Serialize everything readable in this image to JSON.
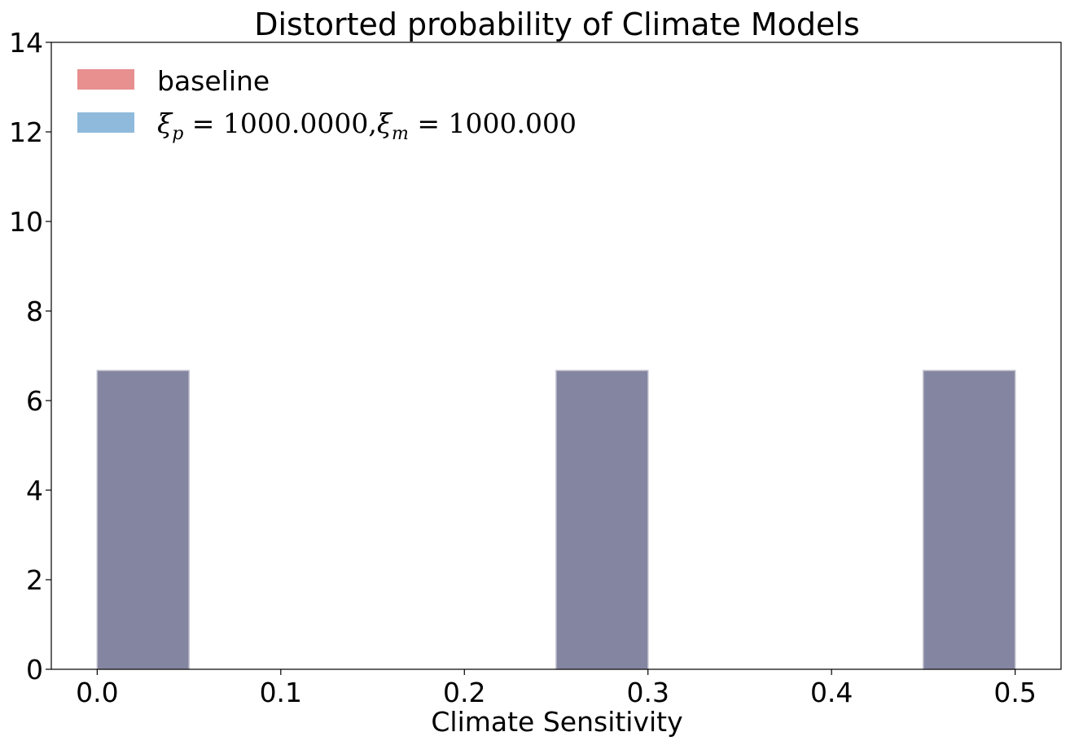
{
  "chart_data": {
    "type": "bar",
    "title": "Distorted probability of Climate Models",
    "xlabel": "Climate Sensitivity",
    "ylabel": "",
    "xlim": [
      -0.025,
      0.525
    ],
    "ylim": [
      0,
      14
    ],
    "x_ticks": [
      0.0,
      0.1,
      0.2,
      0.3,
      0.4,
      0.5
    ],
    "x_tick_labels": [
      "0.0",
      "0.1",
      "0.2",
      "0.3",
      "0.4",
      "0.5"
    ],
    "y_ticks": [
      0,
      2,
      4,
      6,
      8,
      10,
      12,
      14
    ],
    "y_tick_labels": [
      "0",
      "2",
      "4",
      "6",
      "8",
      "10",
      "12",
      "14"
    ],
    "bin_width": 0.05,
    "grid": false,
    "legend_position": "top-left",
    "series": [
      {
        "name": "baseline",
        "color": "#d62728",
        "opacity": 0.5,
        "bins": [
          {
            "x0": 0.0,
            "x1": 0.05,
            "value": 6.67
          },
          {
            "x0": 0.25,
            "x1": 0.3,
            "value": 6.67
          },
          {
            "x0": 0.45,
            "x1": 0.5,
            "value": 6.67
          }
        ]
      },
      {
        "name": "ξp = 1000.0000,ξm = 1000.000",
        "color": "#1f77b4",
        "opacity": 0.5,
        "bins": [
          {
            "x0": 0.0,
            "x1": 0.05,
            "value": 6.67
          },
          {
            "x0": 0.25,
            "x1": 0.3,
            "value": 6.67
          },
          {
            "x0": 0.45,
            "x1": 0.5,
            "value": 6.67
          }
        ]
      }
    ],
    "overlap_color": "#8485a0"
  },
  "legend": {
    "items": [
      {
        "label": "baseline",
        "color": "#e88f8f"
      },
      {
        "label_parts": [
          "ξ",
          "p",
          " = 1000.0000,",
          "ξ",
          "m",
          " = 1000.000"
        ],
        "color": "#8fbadb"
      }
    ]
  }
}
